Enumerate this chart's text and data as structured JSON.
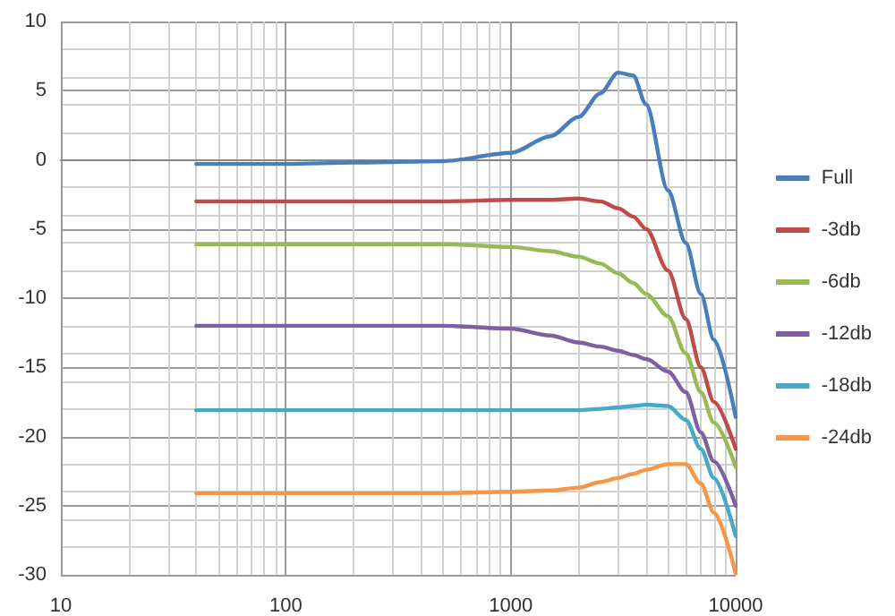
{
  "chart_data": {
    "type": "line",
    "log": "x",
    "grid": true,
    "legend": "right",
    "marker": "none",
    "line_style": "solid",
    "xlim": [
      10,
      10000
    ],
    "xticks": [
      10,
      100,
      1000,
      10000
    ],
    "ylim": [
      -30,
      10
    ],
    "yticks": [
      -30,
      -25,
      -20,
      -15,
      -10,
      -5,
      0,
      5,
      10
    ],
    "x": [
      40,
      100,
      200,
      500,
      1000,
      1500,
      2000,
      2500,
      3000,
      3500,
      4000,
      5000,
      6000,
      7000,
      8000,
      10000
    ],
    "series": [
      {
        "name": "Full",
        "color": "#4a7ebb",
        "values": [
          -0.3,
          -0.3,
          -0.2,
          -0.1,
          0.5,
          1.7,
          3.1,
          4.8,
          6.3,
          6.1,
          4,
          -2.2,
          -6,
          -9.7,
          -13,
          -18.6
        ]
      },
      {
        "name": "-3db",
        "color": "#be4b48",
        "values": [
          -3,
          -3,
          -3,
          -3,
          -2.9,
          -2.9,
          -2.8,
          -3,
          -3.5,
          -4.1,
          -5,
          -8,
          -11.5,
          -15,
          -17.5,
          -20.9
        ]
      },
      {
        "name": "-6db",
        "color": "#98b954",
        "values": [
          -6.1,
          -6.1,
          -6.1,
          -6.1,
          -6.3,
          -6.6,
          -7,
          -7.5,
          -8.2,
          -8.9,
          -9.7,
          -11.3,
          -14,
          -16.8,
          -19,
          -22.2
        ]
      },
      {
        "name": "-12db",
        "color": "#7d60a0",
        "values": [
          -12,
          -12,
          -12,
          -12,
          -12.2,
          -12.7,
          -13.2,
          -13.5,
          -13.8,
          -14.1,
          -14.4,
          -15.3,
          -16.8,
          -19.7,
          -21.8,
          -25
        ]
      },
      {
        "name": "-18db",
        "color": "#46aac5",
        "values": [
          -18.1,
          -18.1,
          -18.1,
          -18.1,
          -18.1,
          -18.1,
          -18.1,
          -18,
          -17.9,
          -17.8,
          -17.7,
          -17.8,
          -18.8,
          -20.9,
          -23,
          -27.2
        ]
      },
      {
        "name": "-24db",
        "color": "#f79646",
        "values": [
          -24.1,
          -24.1,
          -24.1,
          -24.1,
          -24,
          -23.9,
          -23.7,
          -23.3,
          -23,
          -22.7,
          -22.4,
          -22,
          -22,
          -23.4,
          -25.5,
          -29.9
        ]
      }
    ]
  }
}
